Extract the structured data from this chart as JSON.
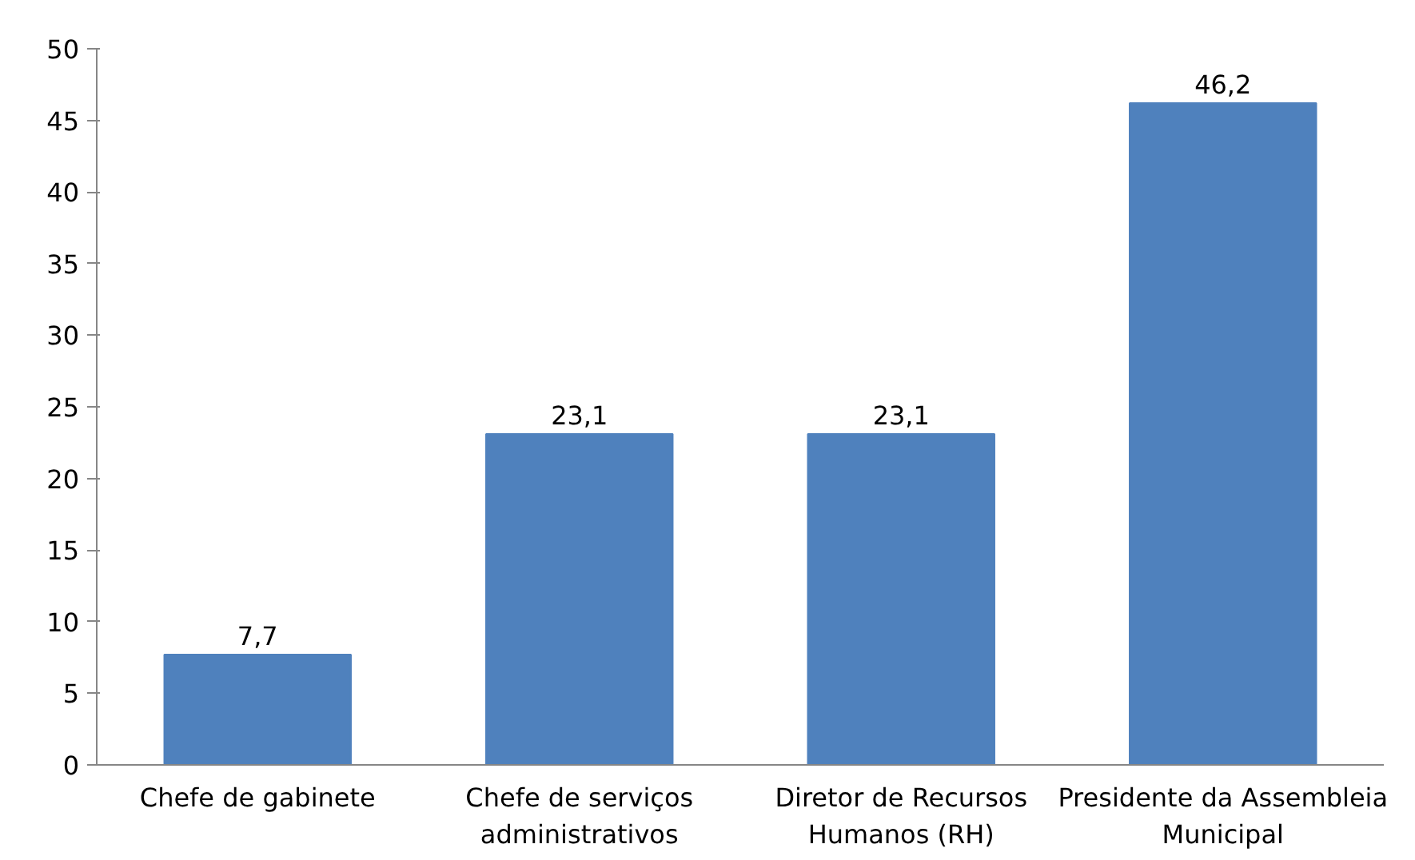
{
  "chart_data": {
    "type": "bar",
    "categories": [
      "Chefe de gabinete",
      "Chefe de serviços administrativos",
      "Diretor de Recursos Humanos (RH)",
      "Presidente da Assembleia Municipal"
    ],
    "values": [
      7.7,
      23.1,
      23.1,
      46.2
    ],
    "value_labels": [
      "7,7",
      "23,1",
      "23,1",
      "46,2"
    ],
    "color": "#4f81bd",
    "ylim": [
      0,
      50
    ],
    "yticks": [
      0,
      5,
      10,
      15,
      20,
      25,
      30,
      35,
      40,
      45,
      50
    ],
    "grid": false
  }
}
